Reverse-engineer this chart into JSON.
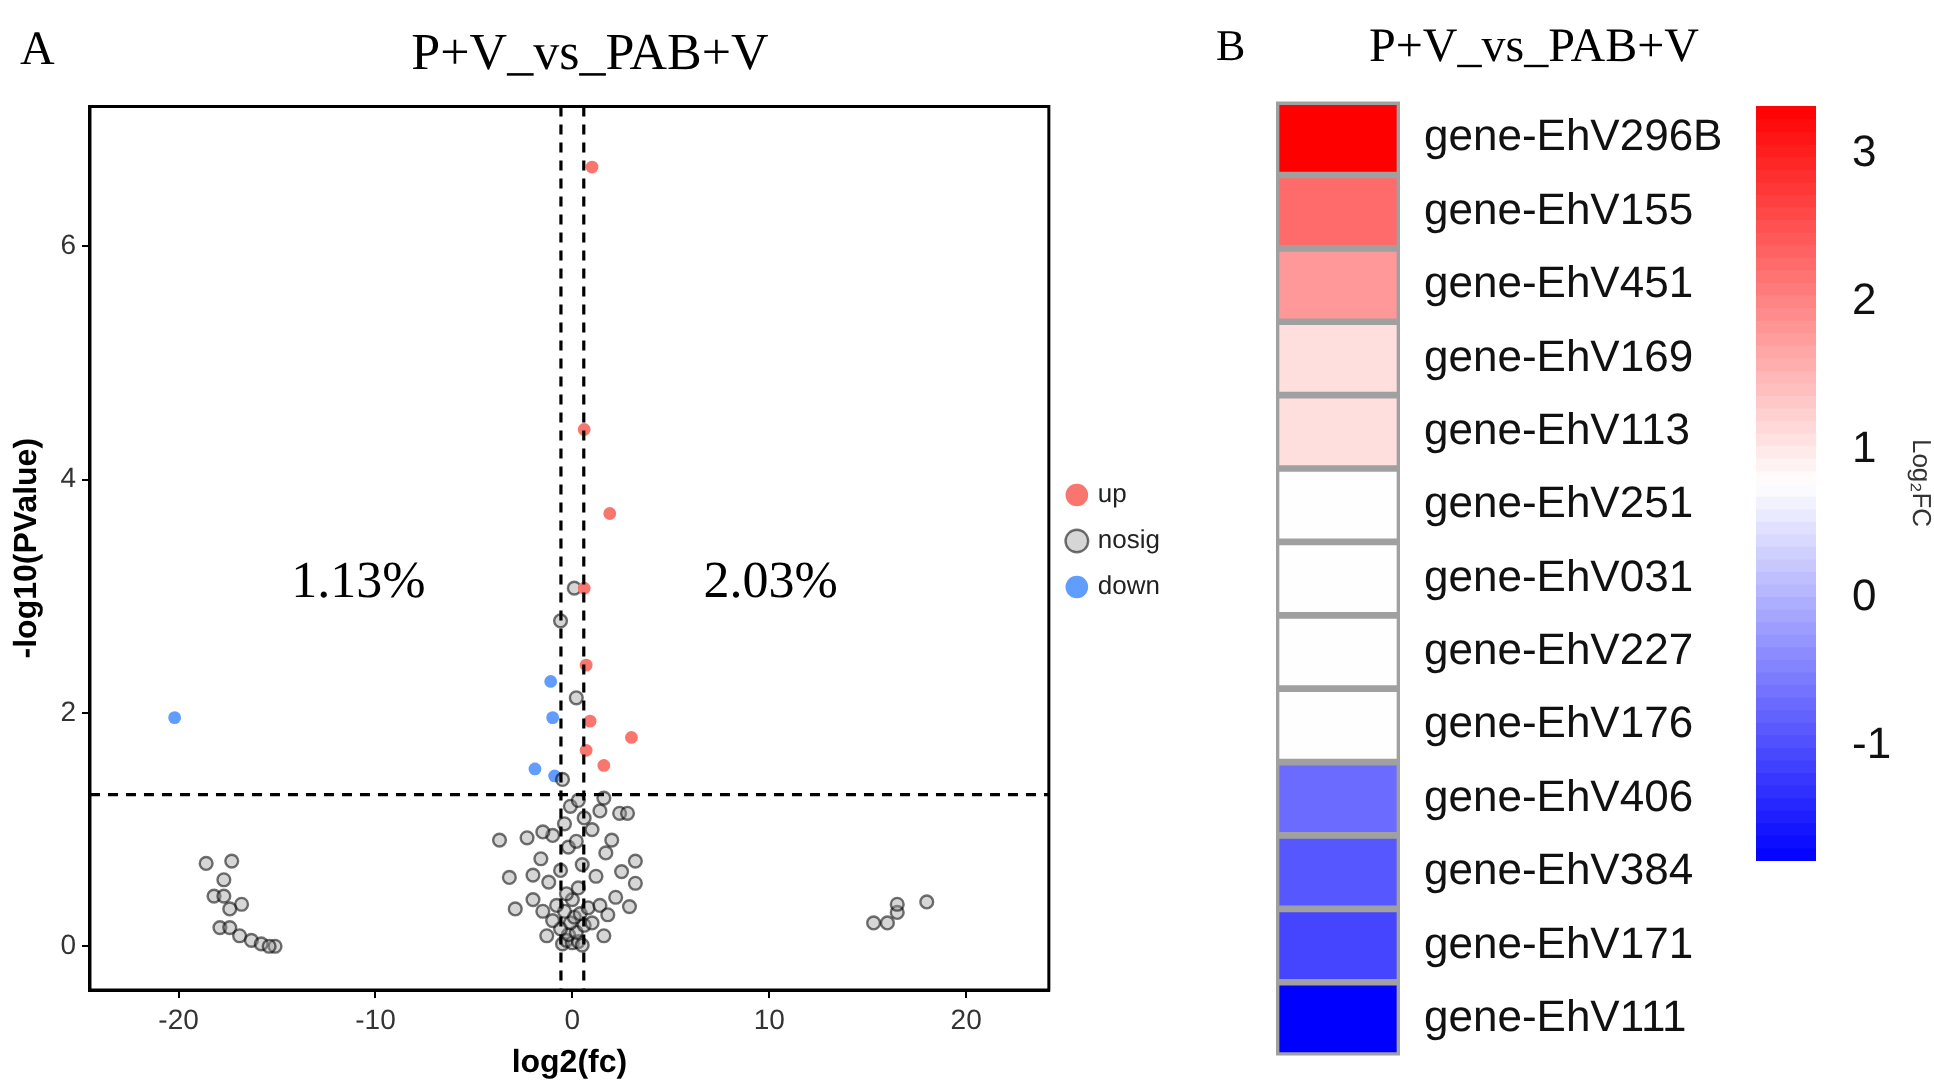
{
  "chart_data": [
    {
      "type": "scatter",
      "title": "P+V_vs_PAB+V",
      "xlabel": "log2(fc)",
      "ylabel": "-log10(PValue)",
      "xlim": [
        -24.5,
        24.2
      ],
      "ylim": [
        -0.375,
        7.2
      ],
      "xticks": [
        -20,
        -10,
        0,
        10,
        20
      ],
      "yticks": [
        0,
        2,
        4,
        6
      ],
      "grid": false,
      "legend": "right",
      "marker": "circle",
      "ref_lines": [
        {
          "axis": "x",
          "value": -0.58,
          "color": "#000000",
          "line_style": "dashed"
        },
        {
          "axis": "x",
          "value": 0.58,
          "color": "#000000",
          "line_style": "dashed"
        },
        {
          "axis": "y",
          "value": 1.3,
          "color": "#000000",
          "line_style": "dashed"
        }
      ],
      "annotations": [
        "A",
        "1.13%",
        "2.03%"
      ],
      "series": [
        {
          "name": "up",
          "color": "#f8766d",
          "x": [
            1.0,
            0.6,
            1.9,
            0.6,
            0.7,
            0.9,
            3.0,
            0.7,
            1.6
          ],
          "values": [
            6.68,
            4.43,
            3.71,
            3.07,
            2.41,
            1.93,
            1.79,
            1.68,
            1.55
          ]
        },
        {
          "name": "nosig",
          "color": "#999999",
          "x": [
            -0.5,
            -0.3,
            0,
            0.3,
            0.5,
            -0.2,
            0.2,
            -0.6,
            0.6,
            -0.1,
            0.1,
            -0.4,
            0.4,
            -0.8,
            0.8,
            0,
            -0.3,
            0.3,
            -1.0,
            1.0,
            -1.5,
            1.4,
            -2.0,
            2.2,
            -1.2,
            1.2,
            -0.6,
            0.5,
            -1.6,
            1.7,
            -0.2,
            0.2,
            -1.0,
            1.0,
            -0.4,
            0.6,
            -0.1,
            0.3,
            -3.7,
            -3.2,
            3.2,
            3.2,
            2.9,
            2.4,
            2.8,
            1.4,
            -1.5,
            -2.3,
            -2.9,
            1.8,
            1.6,
            -1.3,
            2.0,
            2.5,
            -2.0,
            0.1,
            -0.6,
            0.2,
            -0.5,
            1.6,
            -18.6,
            -17.3,
            -17.7,
            -18.2,
            -17.7,
            -16.8,
            -17.4,
            -17.9,
            -17.4,
            -16.9,
            -16.3,
            -15.8,
            -15.1,
            -15.4,
            15.3,
            16.0,
            16.5,
            16.5,
            18.0
          ],
          "values": [
            0.02,
            0.05,
            0.03,
            0.04,
            0.01,
            0.1,
            0.12,
            0.15,
            0.18,
            0.2,
            0.25,
            0.3,
            0.28,
            0.35,
            0.33,
            0.4,
            0.45,
            0.5,
            0.22,
            0.2,
            0.3,
            0.35,
            0.4,
            0.42,
            0.55,
            0.6,
            0.65,
            0.7,
            0.75,
            0.8,
            0.85,
            0.9,
            0.95,
            1.0,
            1.05,
            1.1,
            1.2,
            1.25,
            0.91,
            0.59,
            0.73,
            0.54,
            0.34,
            1.14,
            1.14,
            1.16,
            0.98,
            0.93,
            0.32,
            0.27,
            0.09,
            0.09,
            0.91,
            0.64,
            0.61,
            3.07,
            2.79,
            2.13,
            1.43,
            1.27,
            0.71,
            0.73,
            0.57,
            0.43,
            0.43,
            0.36,
            0.32,
            0.16,
            0.16,
            0.09,
            0.05,
            0.02,
            0,
            0,
            0.2,
            0.2,
            0.29,
            0.36,
            0.38
          ]
        },
        {
          "name": "down",
          "color": "#619cff",
          "x": [
            -1.1,
            -1.0,
            -1.9,
            -0.9,
            -20.2
          ],
          "values": [
            2.27,
            1.96,
            1.52,
            1.46,
            1.96
          ]
        }
      ]
    },
    {
      "type": "heatmap",
      "title": "P+V_vs_PAB+V",
      "annotations": [
        "B"
      ],
      "clabel": "Log₂FC",
      "categories": [
        null
      ],
      "y_categories": [
        "gene-EhV296B",
        "gene-EhV155",
        "gene-EhV451",
        "gene-EhV169",
        "gene-EhV113",
        "gene-EhV251",
        "gene-EhV031",
        "gene-EhV227",
        "gene-EhV176",
        "gene-EhV406",
        "gene-EhV384",
        "gene-EhV171",
        "gene-EhV111"
      ],
      "cells": [
        [
          3.32
        ],
        [
          2.25
        ],
        [
          1.8
        ],
        [
          1.1
        ],
        [
          1.1
        ],
        [
          0.78
        ],
        [
          0.78
        ],
        [
          0.78
        ],
        [
          0.78
        ],
        [
          -0.7
        ],
        [
          -0.9
        ],
        [
          -1.08
        ],
        [
          -1.77
        ]
      ],
      "clim": [
        -1.77,
        3.32
      ],
      "cticks": [
        -1,
        0,
        1,
        2,
        3
      ]
    }
  ]
}
